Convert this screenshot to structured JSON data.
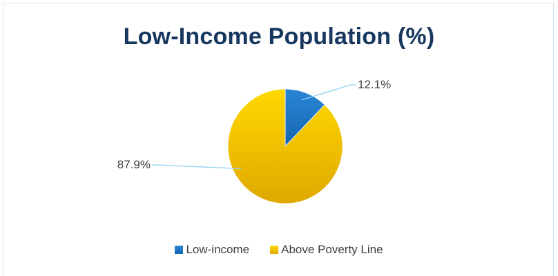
{
  "chart_data": {
    "type": "pie",
    "title": "Low-Income Population (%)",
    "categories": [
      "Low-income",
      "Above Poverty Line"
    ],
    "values": [
      12.1,
      87.9
    ],
    "data_labels": [
      "12.1%",
      "87.9%"
    ],
    "colors": [
      "#1f77c9",
      "#f5c400"
    ],
    "legend_position": "bottom"
  }
}
